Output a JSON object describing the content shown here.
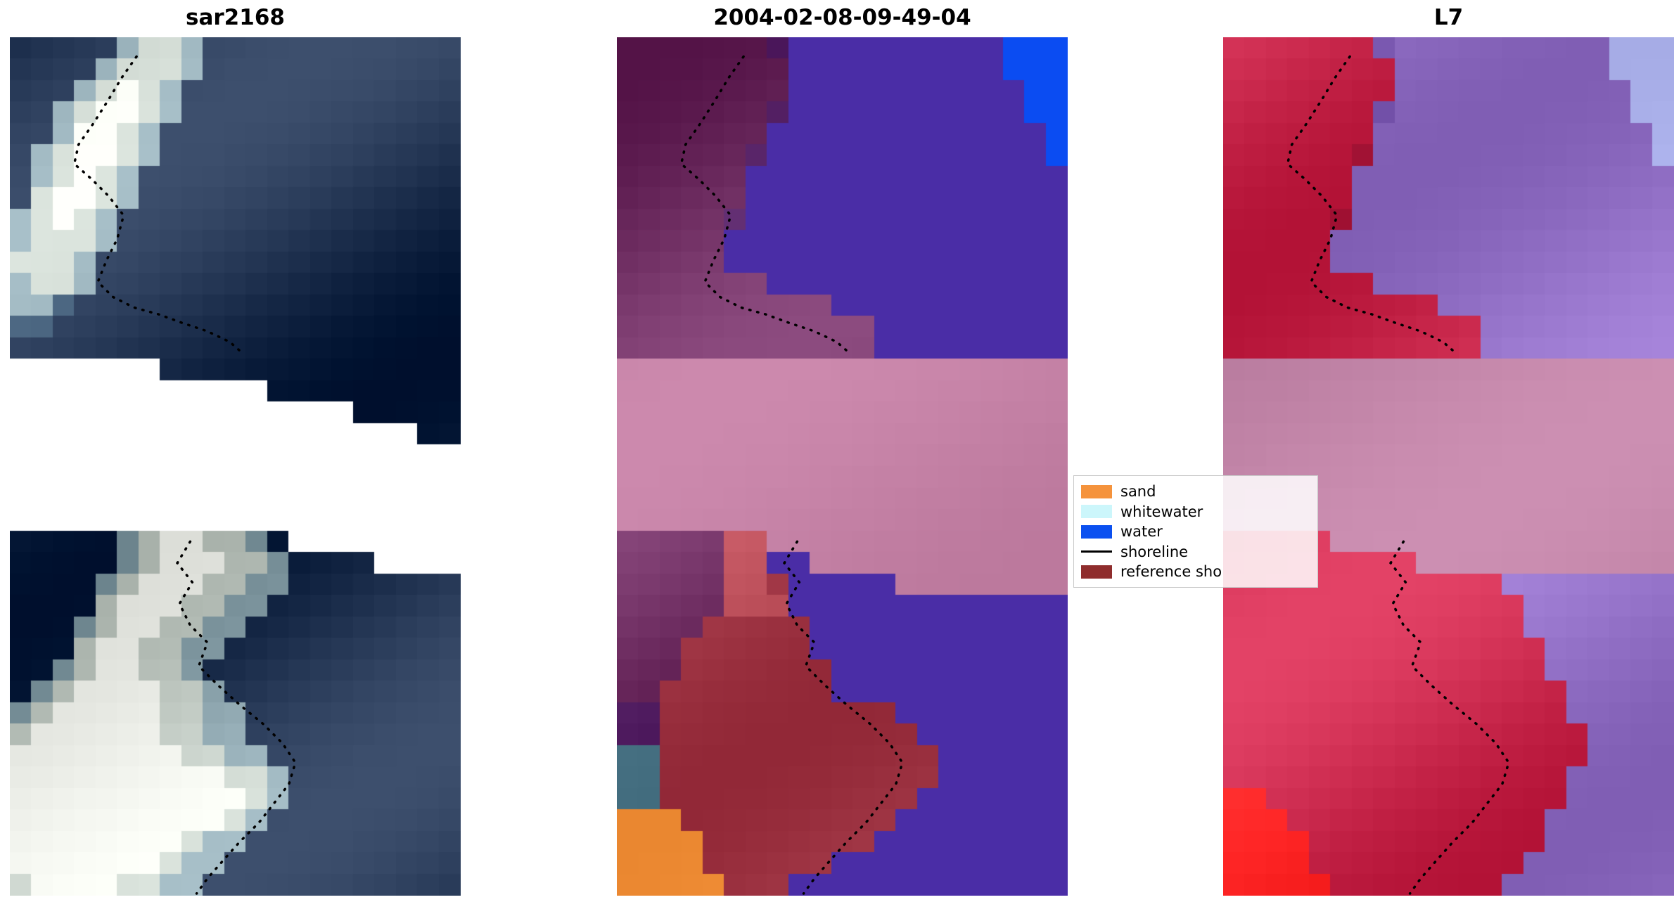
{
  "figure": {
    "background": "#ffffff"
  },
  "panels": [
    {
      "id": "sar",
      "title": "sar2168",
      "kind": "sar-backscatter-image",
      "grid_cols": 21,
      "grid_rows": 40,
      "palette": {
        "a": {
          "c": "#1d2f4d",
          "j": 16
        },
        "c": {
          "c": "#38536e",
          "j": 14
        },
        "g": {
          "c": "#8aa2ab",
          "j": 15
        },
        "l": {
          "c": "#c2cbc4",
          "j": 13
        },
        "w": {
          "c": "#eef0ea",
          "j": 9
        },
        ".": {
          "c": "#ffffff",
          "j": 0
        }
      },
      "grid": [
        "aaaaagllgaaaaaaaaaaaa",
        "aaaaglllgaaaaaaaaaaaa",
        "aaaglwlgaaaaaaaaaaaaa",
        "aaglwwlgaaaaaaaaaaaaa",
        "aagwwlgaaaaaaaaaaaaaa",
        "aglwwlgaaaaaaaaaaaaaa",
        "aglwlgaaaaaaaaaaaaaaa",
        "alwwlgaaaaaaaaaaaaaaa",
        "glwlgaaaaaaaaaaaaaaaa",
        "glllgaaaaaaaaaaaaaaaa",
        "lllgaaaaaaaaaaaaaaaaa",
        "gllgaaaaaaaaaaaaaaaaa",
        "ggcaaaaaaaaaaaaaaaaaa",
        "ccaaaaaaaaaaaaaaaaaaa",
        "aaaaaaaaaaaaaaaaaaaaa",
        ".......aaaaaaaaaaaaaa",
        "............aaaaaaaaa",
        "................aaaaa",
        "...................aa",
        ".....................",
        ".....................",
        ".....................",
        ".....................",
        "aaaaaglwwllga........",
        "aaaaaglwwwllgaaaa....",
        "aaaaglwwwllggaaaaaaaa",
        "aaaalwwwllggaaaaaaaaa",
        "aaaglwwllggaaaaaaaaaa",
        "aaalwwllggaaaaaaaaaaa",
        "aaglwwllgaaaaaaaaaaaa",
        "aglwwwwllgaaaaaaaaaaa",
        "glwwwwwllggaaaaaaaaaa",
        "lwwwwwwllggaaaaaaaaaa",
        "wwwwwwwwllggaaaaaaaaa",
        "wwwwwwwwwwllgaaaaaaaa",
        "wwwwwwwwwwwlgaaaaaaaa",
        "wwwwwwwwwwlgaaaaaaaaa",
        "wwwwwwwwlggaaaaaaaaaa",
        "wwwwwwwlggaaaaaaaaaaa",
        "lwwwwllggaaaaaaaaaaaa"
      ]
    },
    {
      "id": "cls",
      "title": "2004-02-08-09-49-04",
      "kind": "classified-image",
      "grid_cols": 21,
      "grid_rows": 40,
      "palette": {
        "P": {
          "c": "#4a2da6",
          "j": 0
        },
        "M": {
          "c": "#702f63",
          "j": 14
        },
        "m": {
          "c": "#5e2a6e",
          "j": 12
        },
        "r": {
          "c": "#c25560",
          "j": 10
        },
        "R": {
          "c": "#a63c4b",
          "j": 10
        },
        "K": {
          "c": "#c481a5",
          "j": 4
        },
        "B": {
          "c": "#0b4cf2",
          "j": 0
        },
        "O": {
          "c": "#f6933c",
          "j": 6
        },
        "T": {
          "c": "#527c8e",
          "j": 8
        }
      },
      "grid": [
        "MMMMMMMmPPPPPPPPPPBBB",
        "MMMMMMMMPPPPPPPPPPBBB",
        "MMMMMMMMPPPPPPPPPPPBB",
        "MMMMMMMmPPPPPPPPPPPBB",
        "MMMMMMMPPPPPPPPPPPPPB",
        "MMMMMMmPPPPPPPPPPPPPB",
        "MMMMMMPPPPPPPPPPPPPPP",
        "MMMMMMPPPPPPPPPPPPPPP",
        "MMMMMmPPPPPPPPPPPPPPP",
        "MMMMMPPPPPPPPPPPPPPPP",
        "MMMMMPPPPPPPPPPPPPPPP",
        "MMMMMMMPPPPPPPPPPPPPP",
        "MMMMMMMMMMPPPPPPPPPPP",
        "MMMMMMMMMMMMPPPPPPPPP",
        "MMMMMMMMMMMMPPPPPPPPP",
        "KKKKKKKKKKKKKKKKKKKKK",
        "KKKKKKKKKKKKKKKKKKKKK",
        "KKKKKKKKKKKKKKKKKKKKK",
        "KKKKKKKKKKKKKKKKKKKKK",
        "KKKKKKKKKKKKKKKKKKKKK",
        "KKKKKKKKKKKKKKKKKKKKK",
        "KKKKKKKKKKKKKKKKKKKKK",
        "KKKKKKKKKKKKKKKKKKKKK",
        "MMMMMrrKKKKKKKKKKKKKK",
        "MMMMMrrPPKKKKKKKKKKKK",
        "MMMMMrrRPPPPPKKKKKKKK",
        "MMMMMrrrPPPPPPPPPPPPP",
        "MMMMRRRRRPPPPPPPPPPPP",
        "MMMRRRRRRPPPPPPPPPPPP",
        "MMMRRRRRRRPPPPPPPPPPP",
        "MMRRRRRRRRPPPPPPPPPPP",
        "mmRRRRRRRRRRRPPPPPPPP",
        "mmRRRRRRRRRRRRPPPPPPP",
        "TTRRRRRRRRRRRRRPPPPPP",
        "TTRRRRRRRRRRRRRPPPPPP",
        "TTRRRRRRRRRRRRPPPPPPP",
        "OOORRRRRRRRRRPPPPPPPP",
        "OOOORRRRRRRRPPPPPPPPP",
        "OOOORRRRRRPPPPPPPPPPP",
        "OOOOORRRPPPPPPPPPPPPP"
      ]
    },
    {
      "id": "l7",
      "title": "L7",
      "kind": "landsat7-image",
      "grid_cols": 21,
      "grid_rows": 40,
      "palette": {
        "V": {
          "c": "#9472c8",
          "j": 10
        },
        "v": {
          "c": "#8260b8",
          "j": 10
        },
        "C": {
          "c": "#cb2a4e",
          "j": 12
        },
        "d": {
          "c": "#b32446",
          "j": 10
        },
        "K": {
          "c": "#c285a8",
          "j": 5
        },
        "F": {
          "c": "#ff2626",
          "j": 8
        },
        "L": {
          "c": "#b2b8f2",
          "j": 6
        }
      },
      "grid": [
        "CCCCCCCvVVVVVVVVVVLLL",
        "CCCCCCCCVVVVVVVVVVLLL",
        "CCCCCCCCVVVVVVVVVVVLL",
        "CCCCCCCvVVVVVVVVVVVLL",
        "CCCCCCCVVVVVVVVVVVVVL",
        "CCCCCCdVVVVVVVVVVVVVL",
        "CCCCCCVVVVVVVVVVVVVVV",
        "CCCCCCVVVVVVVVVVVVVVV",
        "CCCCCdVVVVVVVVVVVVVVV",
        "CCCCCVVVVVVVVVVVVVVVV",
        "CCCCCVVVVVVVVVVVVVVVV",
        "CCCCCCCVVVVVVVVVVVVVV",
        "CCCCCCCCCCVVVVVVVVVVV",
        "CCCCCCCCCCCCVVVVVVVVV",
        "CCCCCCCCCCCCVVVVVVVVV",
        "KKKKKKKKKKKKKKKKKKKKK",
        "KKKKKKKKKKKKKKKKKKKKK",
        "KKKKKKKKKKKKKKKKKKKKK",
        "KKKKKKKKKKKKKKKKKKKKK",
        "KKKKKKKKKKKKKKKKKKKKK",
        "KKKKKKKKKKKKKKKKKKKKK",
        "KKKKKKKKKKKKKKKKKKKKK",
        "KKKKKKKKKKKKKKKKKKKKK",
        "CCCCCKKKKKKKKKKKKKKKK",
        "CCCCCCCCCKKKKKKKKKKKK",
        "CCCCCCCCCCCCCVVVVVVVV",
        "CCCCCCCCCCCCCCVVVVVVV",
        "CCCCCCCCCCCCCCVVVVVVV",
        "CCCCCCCCCCCCCCCVVVVVV",
        "CCCCCCCCCCCCCCCVVVVVV",
        "CCCCCCCCCCCCCCCCVVVVV",
        "CCCCCCCCCCCCCCCCVVVVV",
        "CCCCCCCCCCCCCCCCCVVVV",
        "CCCCCCCCCCCCCCCCCVVVV",
        "CCCCCCCCCCCCCCCCVVVVV",
        "FFCCCCCCCCCCCCCCVVVVV",
        "FFFCCCCCCCCCCCCVVVVVV",
        "FFFFCCCCCCCCCCCVVVVVV",
        "FFFFCCCCCCCCCCVVVVVVV",
        "FFFFFCCCCCCCCVVVVVVVV"
      ]
    }
  ],
  "shorelines": {
    "top": "118,18 104,38 92,58 78,80 64,100 60,118 76,132 92,148 106,166 100,188 90,208 82,228 96,242 116,252 138,258 160,266 184,274 205,284 214,292",
    "bottom": "168,470 156,490 170,508 158,528 168,548 184,564 176,586 194,604 214,622 236,640 254,658 266,676 260,696 246,714 232,732 214,750 198,768 184,784 174,798"
  },
  "legend": {
    "entries": [
      {
        "label": "sand",
        "color": "#f5933c",
        "type": "patch"
      },
      {
        "label": "whitewater",
        "color": "#ccf6fb",
        "type": "patch"
      },
      {
        "label": "water",
        "color": "#0b50f0",
        "type": "patch"
      },
      {
        "label": "shoreline",
        "color": "#000000",
        "type": "line"
      },
      {
        "label": "reference sho",
        "color": "#8f2d2d",
        "type": "patch"
      }
    ]
  }
}
